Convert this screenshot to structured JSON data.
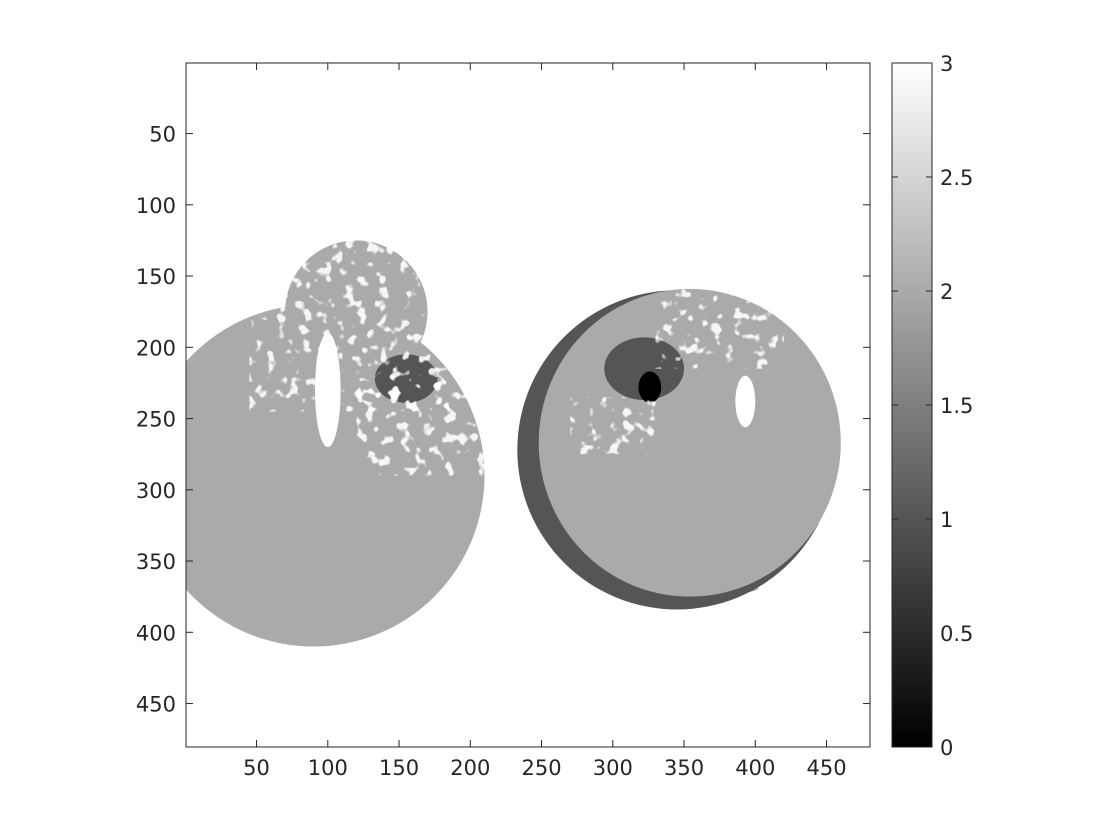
{
  "chart_data": {
    "type": "heatmap",
    "title": "",
    "xlabel": "",
    "ylabel": "",
    "image_size": [
      480,
      480
    ],
    "xlim": [
      0.5,
      480.5
    ],
    "ylim": [
      0.5,
      480.5
    ],
    "y_reversed": true,
    "x_ticks": [
      50,
      100,
      150,
      200,
      250,
      300,
      350,
      400,
      450
    ],
    "x_tick_labels": [
      "50",
      "100",
      "150",
      "200",
      "250",
      "300",
      "350",
      "400",
      "450"
    ],
    "y_ticks": [
      50,
      100,
      150,
      200,
      250,
      300,
      350,
      400,
      450
    ],
    "y_tick_labels": [
      "50",
      "100",
      "150",
      "200",
      "250",
      "300",
      "350",
      "400",
      "450"
    ],
    "colormap": "gray",
    "clim": [
      0,
      3
    ],
    "colorbar_ticks": [
      0,
      0.5,
      1,
      1.5,
      2,
      2.5,
      3
    ],
    "colorbar_tick_labels": [
      "0",
      "0.5",
      "1",
      "1.5",
      "2",
      "2.5",
      "3"
    ],
    "value_levels": [
      0,
      1,
      2,
      3
    ],
    "background_value": 3,
    "regions": [
      {
        "name": "left-apple-body",
        "value": 2,
        "center": [
          90,
          290
        ],
        "radius": 120
      },
      {
        "name": "left-apple-upper-speckle",
        "value": 2,
        "center": [
          120,
          175
        ],
        "radius": 50
      },
      {
        "name": "left-apple-bright-streak",
        "value": 3,
        "center": [
          100,
          230
        ],
        "radius_x": 9,
        "radius_y": 40
      },
      {
        "name": "left-apple-stem-cavity",
        "value": 1,
        "center": [
          155,
          222
        ],
        "radius_x": 22,
        "radius_y": 17
      },
      {
        "name": "left-apple-base-shadow",
        "value": 0,
        "center": [
          95,
          361
        ],
        "radius_x": 28,
        "radius_y": 3
      },
      {
        "name": "left-apple-base-rim",
        "value": 2,
        "center": [
          112,
          364
        ],
        "radius_x": 58,
        "radius_y": 6
      },
      {
        "name": "right-apple-body",
        "value": 2,
        "center": [
          345,
          272
        ],
        "radius": 112
      },
      {
        "name": "right-apple-left-edge-shade",
        "value": 1,
        "center": [
          345,
          272
        ],
        "radius": 112
      },
      {
        "name": "right-apple-stem-cavity",
        "value": 1,
        "center": [
          322,
          215
        ],
        "radius_x": 28,
        "radius_y": 22
      },
      {
        "name": "right-apple-stem-core",
        "value": 0,
        "center": [
          326,
          228
        ],
        "radius_x": 8,
        "radius_y": 11
      },
      {
        "name": "right-apple-bright-spot",
        "value": 3,
        "center": [
          393,
          238
        ],
        "radius_x": 7,
        "radius_y": 18
      },
      {
        "name": "right-apple-base-shadow",
        "value": 0,
        "center": [
          350,
          366
        ],
        "radius_x": 25,
        "radius_y": 3
      },
      {
        "name": "right-apple-base-rim",
        "value": 2,
        "center": [
          350,
          369
        ],
        "radius_x": 52,
        "radius_y": 6
      }
    ]
  }
}
